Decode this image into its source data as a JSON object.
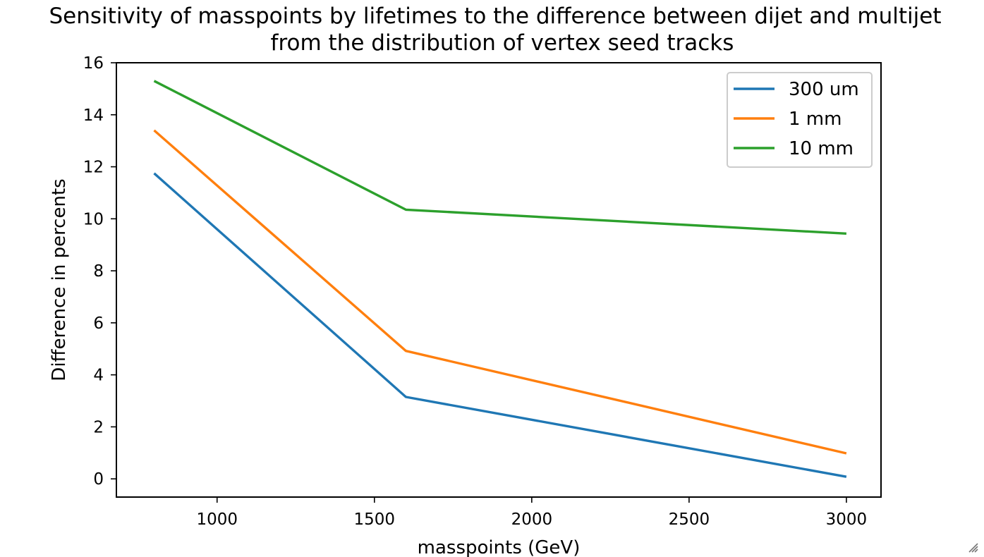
{
  "chart_data": {
    "type": "line",
    "title_line1": "Sensitivity of masspoints by lifetimes to the difference between dijet and multijet",
    "title_line2": "from the distribution of vertex seed tracks",
    "xlabel": "masspoints (GeV)",
    "ylabel": "Difference in percents",
    "x": [
      800,
      1600,
      3000
    ],
    "xlim": [
      680,
      3110
    ],
    "ylim": [
      -0.7,
      16.0
    ],
    "x_ticks": [
      1000,
      1500,
      2000,
      2500,
      3000
    ],
    "y_ticks": [
      0,
      2,
      4,
      6,
      8,
      10,
      12,
      14,
      16
    ],
    "grid": false,
    "legend_position": "top-right",
    "series": [
      {
        "name": "300 um",
        "color": "#1f77b4",
        "values": [
          11.75,
          3.15,
          0.08
        ]
      },
      {
        "name": "1 mm",
        "color": "#ff7f0e",
        "values": [
          13.4,
          4.92,
          0.98
        ]
      },
      {
        "name": "10 mm",
        "color": "#2ca02c",
        "values": [
          15.3,
          10.35,
          9.43
        ]
      }
    ]
  },
  "window": {
    "resize_icon": "resize-grip-icon"
  }
}
